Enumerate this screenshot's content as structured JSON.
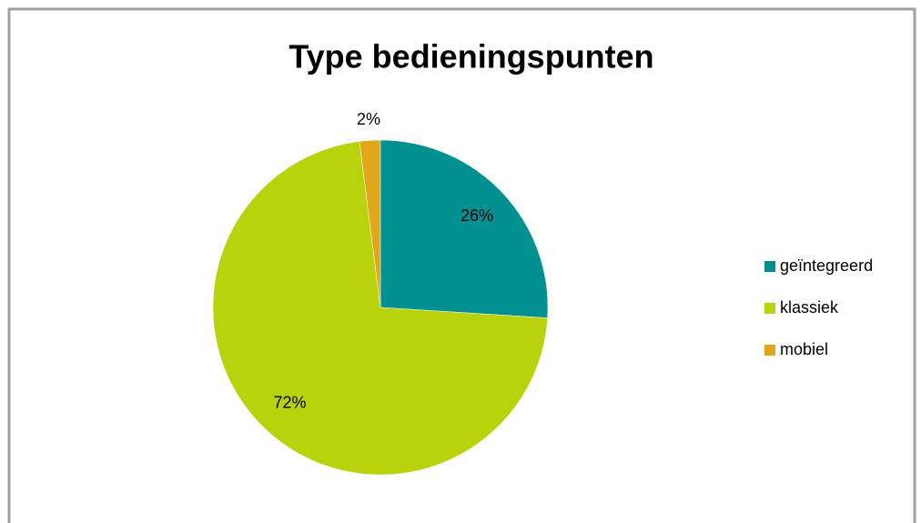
{
  "chart_data": {
    "type": "pie",
    "title": "Type bedieningspunten",
    "categories": [
      "geïntegreerd",
      "klassiek",
      "mobiel"
    ],
    "values": [
      26,
      72,
      2
    ],
    "value_labels": [
      "26%",
      "72%",
      "2%"
    ],
    "colors": [
      "#009090",
      "#b8d20b",
      "#e0a61c"
    ],
    "legend": "right"
  }
}
